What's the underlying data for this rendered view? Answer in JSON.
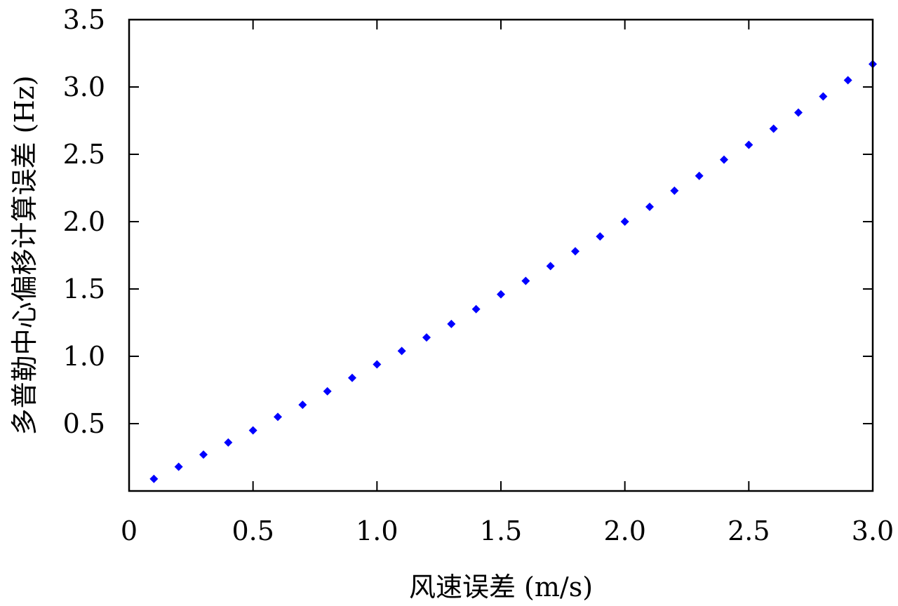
{
  "chart_data": {
    "type": "scatter",
    "title": "",
    "xlabel": "风速误差 (m/s)",
    "ylabel": "多普勒中心偏移计算误差 (Hz)",
    "xlim": [
      0,
      3.0
    ],
    "ylim": [
      0,
      3.5
    ],
    "x_ticks": [
      "0",
      "0.5",
      "1.0",
      "1.5",
      "2.0",
      "2.5",
      "3.0"
    ],
    "x_tick_values": [
      0,
      0.5,
      1.0,
      1.5,
      2.0,
      2.5,
      3.0
    ],
    "y_ticks": [
      "0.5",
      "1.0",
      "1.5",
      "2.0",
      "2.5",
      "3.0",
      "3.5"
    ],
    "y_tick_values": [
      0.5,
      1.0,
      1.5,
      2.0,
      2.5,
      3.0,
      3.5
    ],
    "grid": false,
    "marker": "diamond",
    "series": [
      {
        "color": "#0000ff",
        "x": [
          0.1,
          0.2,
          0.3,
          0.4,
          0.5,
          0.6,
          0.7,
          0.8,
          0.9,
          1.0,
          1.1,
          1.2,
          1.3,
          1.4,
          1.5,
          1.6,
          1.7,
          1.8,
          1.9,
          2.0,
          2.1,
          2.2,
          2.3,
          2.4,
          2.5,
          2.6,
          2.7,
          2.8,
          2.9,
          3.0
        ],
        "y": [
          0.09,
          0.18,
          0.27,
          0.36,
          0.45,
          0.55,
          0.64,
          0.74,
          0.84,
          0.94,
          1.04,
          1.14,
          1.24,
          1.35,
          1.46,
          1.56,
          1.67,
          1.78,
          1.89,
          2.0,
          2.11,
          2.23,
          2.34,
          2.46,
          2.57,
          2.69,
          2.81,
          2.93,
          3.05,
          3.17
        ]
      }
    ]
  }
}
